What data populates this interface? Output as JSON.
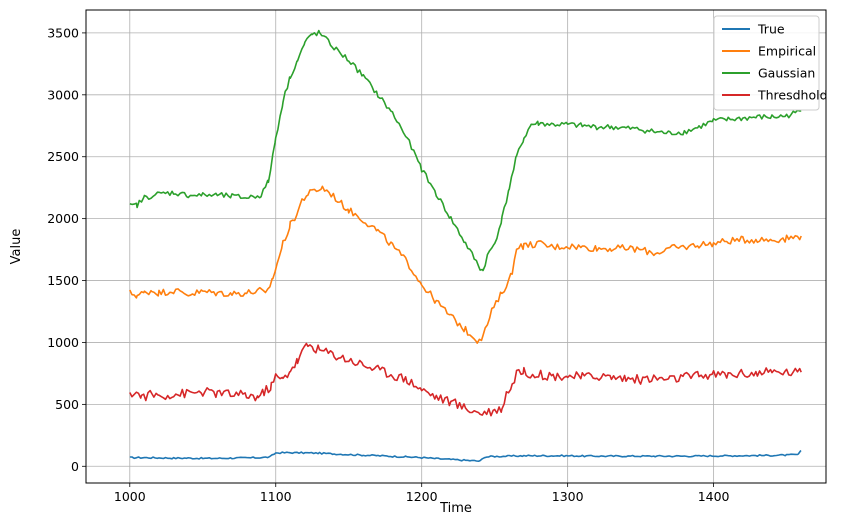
{
  "chart_data": {
    "type": "line",
    "title": "",
    "xlabel": "Time",
    "ylabel": "Value",
    "xlim": [
      970,
      1477
    ],
    "ylim": [
      -135,
      3685
    ],
    "xticks": [
      1000,
      1100,
      1200,
      1300,
      1400
    ],
    "yticks": [
      0,
      500,
      1000,
      1500,
      2000,
      2500,
      3000,
      3500
    ],
    "grid": true,
    "legend_position": "top-right",
    "series": [
      {
        "name": "True",
        "color": "#1f77b4",
        "points": [
          [
            1000,
            70
          ],
          [
            1010,
            70
          ],
          [
            1020,
            68
          ],
          [
            1030,
            66
          ],
          [
            1040,
            66
          ],
          [
            1050,
            64
          ],
          [
            1060,
            64
          ],
          [
            1070,
            66
          ],
          [
            1080,
            68
          ],
          [
            1090,
            70
          ],
          [
            1096,
            75
          ],
          [
            1100,
            108
          ],
          [
            1110,
            110
          ],
          [
            1120,
            108
          ],
          [
            1130,
            106
          ],
          [
            1140,
            100
          ],
          [
            1150,
            95
          ],
          [
            1160,
            90
          ],
          [
            1170,
            86
          ],
          [
            1180,
            80
          ],
          [
            1190,
            76
          ],
          [
            1200,
            70
          ],
          [
            1210,
            62
          ],
          [
            1220,
            55
          ],
          [
            1230,
            48
          ],
          [
            1240,
            42
          ],
          [
            1243,
            75
          ],
          [
            1250,
            80
          ],
          [
            1260,
            82
          ],
          [
            1270,
            85
          ],
          [
            1280,
            85
          ],
          [
            1290,
            85
          ],
          [
            1300,
            85
          ],
          [
            1310,
            83
          ],
          [
            1320,
            82
          ],
          [
            1330,
            82
          ],
          [
            1340,
            82
          ],
          [
            1350,
            82
          ],
          [
            1360,
            82
          ],
          [
            1370,
            82
          ],
          [
            1380,
            82
          ],
          [
            1390,
            83
          ],
          [
            1400,
            84
          ],
          [
            1410,
            85
          ],
          [
            1420,
            86
          ],
          [
            1430,
            87
          ],
          [
            1440,
            88
          ],
          [
            1450,
            90
          ],
          [
            1458,
            95
          ],
          [
            1460,
            125
          ]
        ]
      },
      {
        "name": "Empirical",
        "color": "#ff7f0e",
        "points": [
          [
            1000,
            1400
          ],
          [
            1005,
            1380
          ],
          [
            1010,
            1400
          ],
          [
            1015,
            1420
          ],
          [
            1020,
            1400
          ],
          [
            1030,
            1420
          ],
          [
            1040,
            1390
          ],
          [
            1050,
            1410
          ],
          [
            1060,
            1400
          ],
          [
            1070,
            1395
          ],
          [
            1080,
            1400
          ],
          [
            1090,
            1420
          ],
          [
            1093,
            1380
          ],
          [
            1098,
            1520
          ],
          [
            1105,
            1800
          ],
          [
            1110,
            1950
          ],
          [
            1115,
            2050
          ],
          [
            1118,
            2150
          ],
          [
            1122,
            2200
          ],
          [
            1128,
            2230
          ],
          [
            1132,
            2250
          ],
          [
            1138,
            2200
          ],
          [
            1145,
            2120
          ],
          [
            1150,
            2070
          ],
          [
            1160,
            1990
          ],
          [
            1170,
            1900
          ],
          [
            1180,
            1780
          ],
          [
            1190,
            1650
          ],
          [
            1200,
            1470
          ],
          [
            1210,
            1330
          ],
          [
            1220,
            1210
          ],
          [
            1230,
            1100
          ],
          [
            1238,
            1020
          ],
          [
            1242,
            1050
          ],
          [
            1248,
            1250
          ],
          [
            1255,
            1400
          ],
          [
            1262,
            1560
          ],
          [
            1265,
            1780
          ],
          [
            1270,
            1780
          ],
          [
            1280,
            1800
          ],
          [
            1290,
            1770
          ],
          [
            1300,
            1780
          ],
          [
            1310,
            1770
          ],
          [
            1320,
            1760
          ],
          [
            1330,
            1760
          ],
          [
            1340,
            1760
          ],
          [
            1350,
            1750
          ],
          [
            1360,
            1720
          ],
          [
            1370,
            1760
          ],
          [
            1380,
            1770
          ],
          [
            1390,
            1790
          ],
          [
            1400,
            1800
          ],
          [
            1410,
            1820
          ],
          [
            1420,
            1830
          ],
          [
            1430,
            1830
          ],
          [
            1440,
            1830
          ],
          [
            1450,
            1840
          ],
          [
            1460,
            1860
          ]
        ]
      },
      {
        "name": "Gaussian",
        "color": "#2ca02c",
        "points": [
          [
            1000,
            2100
          ],
          [
            1005,
            2110
          ],
          [
            1010,
            2170
          ],
          [
            1020,
            2200
          ],
          [
            1030,
            2210
          ],
          [
            1040,
            2190
          ],
          [
            1050,
            2190
          ],
          [
            1060,
            2190
          ],
          [
            1070,
            2180
          ],
          [
            1080,
            2170
          ],
          [
            1090,
            2190
          ],
          [
            1095,
            2300
          ],
          [
            1100,
            2650
          ],
          [
            1105,
            2950
          ],
          [
            1110,
            3150
          ],
          [
            1115,
            3280
          ],
          [
            1120,
            3420
          ],
          [
            1125,
            3490
          ],
          [
            1130,
            3500
          ],
          [
            1140,
            3380
          ],
          [
            1150,
            3280
          ],
          [
            1160,
            3150
          ],
          [
            1170,
            3000
          ],
          [
            1180,
            2850
          ],
          [
            1190,
            2650
          ],
          [
            1200,
            2400
          ],
          [
            1210,
            2200
          ],
          [
            1220,
            2000
          ],
          [
            1230,
            1800
          ],
          [
            1240,
            1600
          ],
          [
            1242,
            1580
          ],
          [
            1245,
            1700
          ],
          [
            1250,
            1800
          ],
          [
            1255,
            2000
          ],
          [
            1260,
            2250
          ],
          [
            1265,
            2500
          ],
          [
            1270,
            2650
          ],
          [
            1275,
            2760
          ],
          [
            1280,
            2770
          ],
          [
            1290,
            2760
          ],
          [
            1300,
            2760
          ],
          [
            1310,
            2750
          ],
          [
            1320,
            2740
          ],
          [
            1330,
            2740
          ],
          [
            1340,
            2730
          ],
          [
            1350,
            2720
          ],
          [
            1360,
            2700
          ],
          [
            1370,
            2690
          ],
          [
            1380,
            2700
          ],
          [
            1390,
            2740
          ],
          [
            1400,
            2790
          ],
          [
            1410,
            2800
          ],
          [
            1420,
            2810
          ],
          [
            1430,
            2820
          ],
          [
            1440,
            2820
          ],
          [
            1450,
            2830
          ],
          [
            1460,
            2870
          ]
        ]
      },
      {
        "name": "Thresdhold",
        "color": "#d62728",
        "points": [
          [
            1000,
            560
          ],
          [
            1003,
            610
          ],
          [
            1008,
            560
          ],
          [
            1015,
            580
          ],
          [
            1020,
            570
          ],
          [
            1030,
            580
          ],
          [
            1040,
            590
          ],
          [
            1050,
            600
          ],
          [
            1060,
            590
          ],
          [
            1070,
            580
          ],
          [
            1080,
            570
          ],
          [
            1088,
            560
          ],
          [
            1092,
            600
          ],
          [
            1097,
            650
          ],
          [
            1100,
            720
          ],
          [
            1105,
            700
          ],
          [
            1110,
            780
          ],
          [
            1115,
            850
          ],
          [
            1118,
            920
          ],
          [
            1122,
            980
          ],
          [
            1126,
            960
          ],
          [
            1130,
            940
          ],
          [
            1140,
            900
          ],
          [
            1150,
            860
          ],
          [
            1160,
            820
          ],
          [
            1170,
            780
          ],
          [
            1180,
            740
          ],
          [
            1190,
            700
          ],
          [
            1200,
            620
          ],
          [
            1210,
            560
          ],
          [
            1220,
            520
          ],
          [
            1230,
            470
          ],
          [
            1240,
            430
          ],
          [
            1250,
            450
          ],
          [
            1255,
            470
          ],
          [
            1258,
            590
          ],
          [
            1262,
            650
          ],
          [
            1265,
            770
          ],
          [
            1270,
            760
          ],
          [
            1280,
            740
          ],
          [
            1290,
            730
          ],
          [
            1300,
            730
          ],
          [
            1310,
            720
          ],
          [
            1320,
            730
          ],
          [
            1330,
            720
          ],
          [
            1340,
            710
          ],
          [
            1350,
            700
          ],
          [
            1360,
            710
          ],
          [
            1370,
            700
          ],
          [
            1380,
            720
          ],
          [
            1390,
            730
          ],
          [
            1400,
            740
          ],
          [
            1410,
            740
          ],
          [
            1420,
            750
          ],
          [
            1430,
            750
          ],
          [
            1440,
            760
          ],
          [
            1450,
            760
          ],
          [
            1460,
            760
          ]
        ]
      }
    ]
  }
}
